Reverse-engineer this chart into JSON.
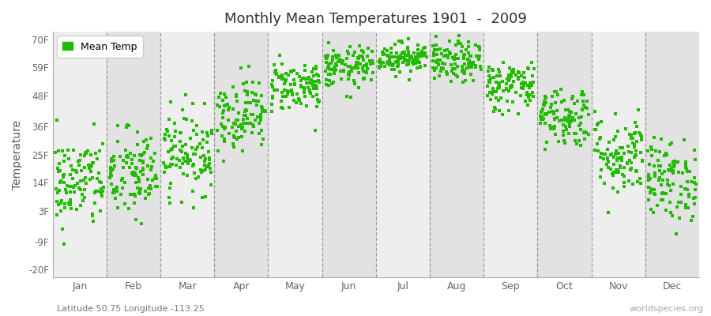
{
  "title": "Monthly Mean Temperatures 1901  -  2009",
  "ylabel": "Temperature",
  "yticks": [
    -20,
    -9,
    3,
    14,
    25,
    36,
    48,
    59,
    70
  ],
  "ytick_labels": [
    "-20F",
    "-9F",
    "3F",
    "14F",
    "25F",
    "36F",
    "48F",
    "59F",
    "70F"
  ],
  "ylim": [
    -23,
    73
  ],
  "month_labels": [
    "Jan",
    "Feb",
    "Mar",
    "Apr",
    "May",
    "Jun",
    "Jul",
    "Aug",
    "Sep",
    "Oct",
    "Nov",
    "Dec"
  ],
  "dot_color": "#22bb00",
  "legend_label": "Mean Temp",
  "bg_color_light": "#eeeeee",
  "bg_color_dark": "#e2e2e2",
  "subtitle": "Latitude 50.75 Longitude -113.25",
  "watermark": "worldspecies.org",
  "monthly_means_F": [
    14,
    17,
    26,
    41,
    52,
    59,
    63,
    61,
    52,
    40,
    25,
    15
  ],
  "monthly_stds_F": [
    9,
    9,
    8,
    7,
    5,
    4,
    3,
    4,
    5,
    6,
    8,
    8
  ],
  "n_years": 109,
  "figsize": [
    9.0,
    4.0
  ],
  "dpi": 100
}
